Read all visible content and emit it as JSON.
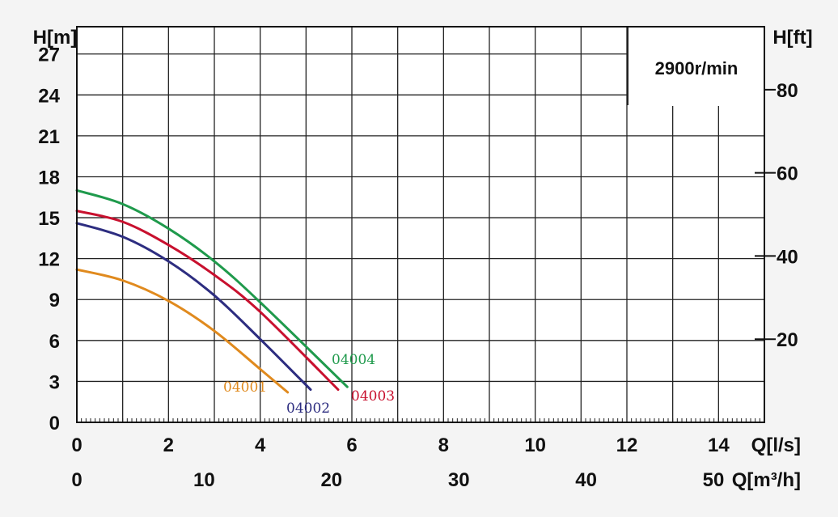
{
  "chart_data": {
    "type": "line",
    "speed_label": "2900r/min",
    "left_axis": {
      "label": "H[m]",
      "range": [
        0,
        29
      ],
      "ticks": [
        0,
        3,
        6,
        9,
        12,
        15,
        18,
        21,
        24,
        27
      ],
      "tick_labels": [
        "0",
        "3",
        "6",
        "9",
        "12",
        "15",
        "18",
        "21",
        "24",
        "27"
      ]
    },
    "right_axis": {
      "label": "H[ft]",
      "ticks_ft": [
        20,
        40,
        60,
        80
      ],
      "tick_labels": [
        "20",
        "40",
        "60",
        "80"
      ],
      "ft_per_m": 3.28084
    },
    "x_axis": {
      "label": "Q[l/s]",
      "range": [
        0,
        15
      ],
      "ticks": [
        0,
        2,
        4,
        6,
        8,
        10,
        12,
        14
      ],
      "tick_labels": [
        "0",
        "2",
        "4",
        "6",
        "8",
        "10",
        "12",
        "14"
      ]
    },
    "x2_axis": {
      "label": "Q[m³/h]",
      "ticks_m3h": [
        0,
        10,
        20,
        30,
        40,
        50
      ],
      "tick_labels": [
        "0",
        "10",
        "20",
        "30",
        "40",
        "50"
      ],
      "m3h_per_ls": 3.6
    },
    "grid": true,
    "series": [
      {
        "name": "04001",
        "color": "#e08a1e",
        "x": [
          0,
          1,
          2,
          3,
          4,
          4.6
        ],
        "y": [
          11.2,
          10.4,
          8.9,
          6.7,
          3.9,
          2.2
        ]
      },
      {
        "name": "04002",
        "color": "#2d2d80",
        "x": [
          0,
          1,
          2,
          3,
          4,
          5.1
        ],
        "y": [
          14.6,
          13.6,
          11.8,
          9.3,
          6.1,
          2.4
        ]
      },
      {
        "name": "04003",
        "color": "#c8102e",
        "x": [
          0,
          1,
          2,
          3,
          4,
          5.7
        ],
        "y": [
          15.5,
          14.7,
          13.0,
          10.8,
          8.1,
          2.4
        ]
      },
      {
        "name": "04004",
        "color": "#1f9a4c",
        "x": [
          0,
          1,
          2,
          3,
          4,
          5.9
        ],
        "y": [
          17.0,
          16.0,
          14.2,
          11.8,
          8.8,
          2.6
        ]
      }
    ]
  }
}
